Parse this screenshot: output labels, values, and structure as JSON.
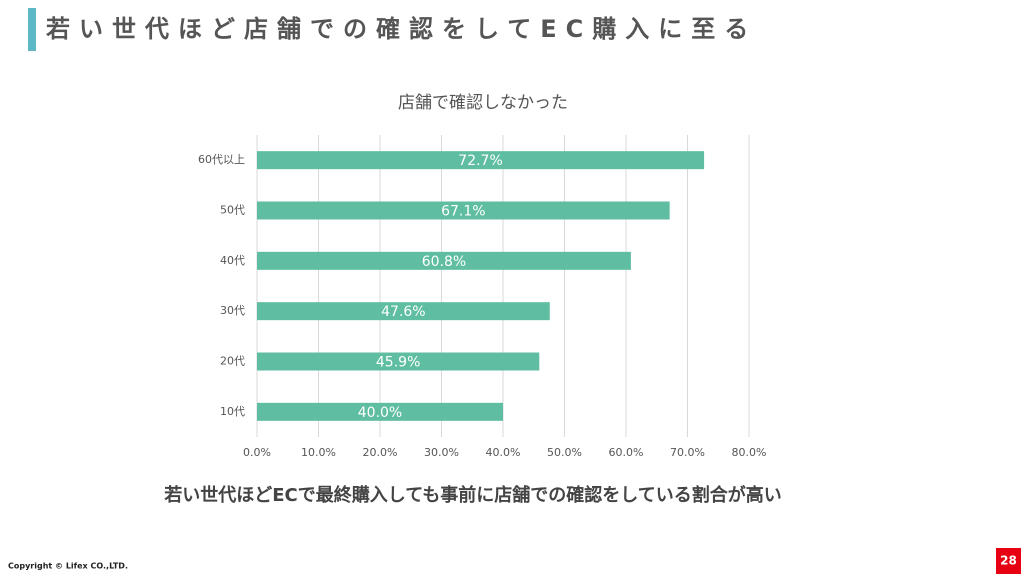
{
  "slide": {
    "title": "若い世代ほど店舗での確認をしてEC購入に至る",
    "conclusion": "若い世代ほどECで最終購入しても事前に店舗での確認をしている割合が高い",
    "copyright": "Copyright © Lifex CO.,LTD.",
    "page_number": "28"
  },
  "chart_data": {
    "type": "hbar",
    "title": "店舗で確認しなかった",
    "categories": [
      "60代以上",
      "50代",
      "40代",
      "30代",
      "20代",
      "10代"
    ],
    "values": [
      72.7,
      67.1,
      60.8,
      47.6,
      45.9,
      40.0
    ],
    "value_labels": [
      "72.7%",
      "67.1%",
      "60.8%",
      "47.6%",
      "45.9%",
      "40.0%"
    ],
    "color": "#5fbea2",
    "xlim": [
      0,
      80
    ],
    "xticks": [
      {
        "value": 0,
        "label": "0.0%"
      },
      {
        "value": 10,
        "label": "10.0%"
      },
      {
        "value": 20,
        "label": "20.0%"
      },
      {
        "value": 30,
        "label": "30.0%"
      },
      {
        "value": 40,
        "label": "40.0%"
      },
      {
        "value": 50,
        "label": "50.0%"
      },
      {
        "value": 60,
        "label": "60.0%"
      },
      {
        "value": 70,
        "label": "70.0%"
      },
      {
        "value": 80,
        "label": "80.0%"
      }
    ],
    "grid": true
  }
}
